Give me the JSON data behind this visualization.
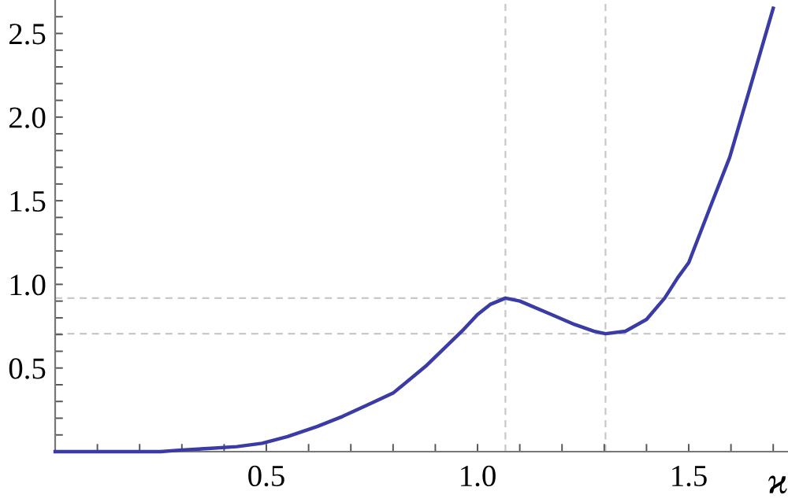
{
  "chart_data": {
    "type": "line",
    "xlabel": "ϰ",
    "x": [
      0,
      0.1,
      0.2,
      0.25,
      0.3,
      0.37,
      0.43,
      0.49,
      0.55,
      0.62,
      0.68,
      0.74,
      0.8,
      0.877,
      0.963,
      1.0,
      1.03,
      1.066,
      1.1,
      1.175,
      1.23,
      1.275,
      1.303,
      1.35,
      1.4,
      1.443,
      1.474,
      1.5,
      1.549,
      1.597,
      1.648,
      1.7
    ],
    "series": [
      {
        "color": "#3b3ba6",
        "values": [
          0,
          0,
          0,
          0,
          0.01,
          0.02,
          0.03,
          0.05,
          0.09,
          0.15,
          0.21,
          0.28,
          0.35,
          0.51,
          0.72,
          0.82,
          0.88,
          0.918,
          0.9,
          0.82,
          0.76,
          0.72,
          0.705,
          0.72,
          0.79,
          0.918,
          1.04,
          1.13,
          1.45,
          1.76,
          2.2,
          2.65
        ]
      }
    ],
    "xlim": [
      0,
      1.735
    ],
    "ylim": [
      0,
      2.7
    ],
    "xticks": [
      {
        "value": 0.1,
        "label": null
      },
      {
        "value": 0.2,
        "label": null
      },
      {
        "value": 0.3,
        "label": null
      },
      {
        "value": 0.4,
        "label": null
      },
      0.5,
      {
        "value": 0.6,
        "label": null
      },
      {
        "value": 0.7,
        "label": null
      },
      {
        "value": 0.8,
        "label": null
      },
      {
        "value": 0.9,
        "label": null
      },
      {
        "value": 1.0,
        "label": "1.0"
      },
      {
        "value": 1.1,
        "label": null
      },
      {
        "value": 1.2,
        "label": null
      },
      {
        "value": 1.3,
        "label": null
      },
      {
        "value": 1.4,
        "label": null
      },
      1.5,
      {
        "value": 1.6,
        "label": null
      },
      {
        "value": 1.7,
        "label": null
      }
    ],
    "yticks": [
      {
        "value": 0.1,
        "label": null
      },
      {
        "value": 0.2,
        "label": null
      },
      {
        "value": 0.3,
        "label": null
      },
      {
        "value": 0.4,
        "label": null
      },
      0.5,
      {
        "value": 0.6,
        "label": null
      },
      {
        "value": 0.7,
        "label": null
      },
      {
        "value": 0.8,
        "label": null
      },
      {
        "value": 0.9,
        "label": null
      },
      {
        "value": 1.0,
        "label": "1.0"
      },
      {
        "value": 1.1,
        "label": null
      },
      {
        "value": 1.2,
        "label": null
      },
      {
        "value": 1.3,
        "label": null
      },
      {
        "value": 1.4,
        "label": null
      },
      1.5,
      {
        "value": 1.6,
        "label": null
      },
      {
        "value": 1.7,
        "label": null
      },
      {
        "value": 1.8,
        "label": null
      },
      {
        "value": 1.9,
        "label": null
      },
      {
        "value": 2.0,
        "label": "2.0"
      },
      {
        "value": 2.1,
        "label": null
      },
      {
        "value": 2.2,
        "label": null
      },
      {
        "value": 2.3,
        "label": null
      },
      {
        "value": 2.4,
        "label": null
      },
      2.5,
      {
        "value": 2.6,
        "label": null
      }
    ],
    "ref_lines": [
      {
        "axis": "x",
        "value": 1.066,
        "color": "#c8c8c8",
        "line_style": "dashed"
      },
      {
        "axis": "x",
        "value": 1.303,
        "color": "#c8c8c8",
        "line_style": "dashed"
      },
      {
        "axis": "y",
        "value": 0.918,
        "color": "#c8c8c8",
        "line_style": "dashed"
      },
      {
        "axis": "y",
        "value": 0.705,
        "color": "#c8c8c8",
        "line_style": "dashed"
      }
    ],
    "grid": false,
    "marker": "none",
    "line_style": "solid"
  }
}
